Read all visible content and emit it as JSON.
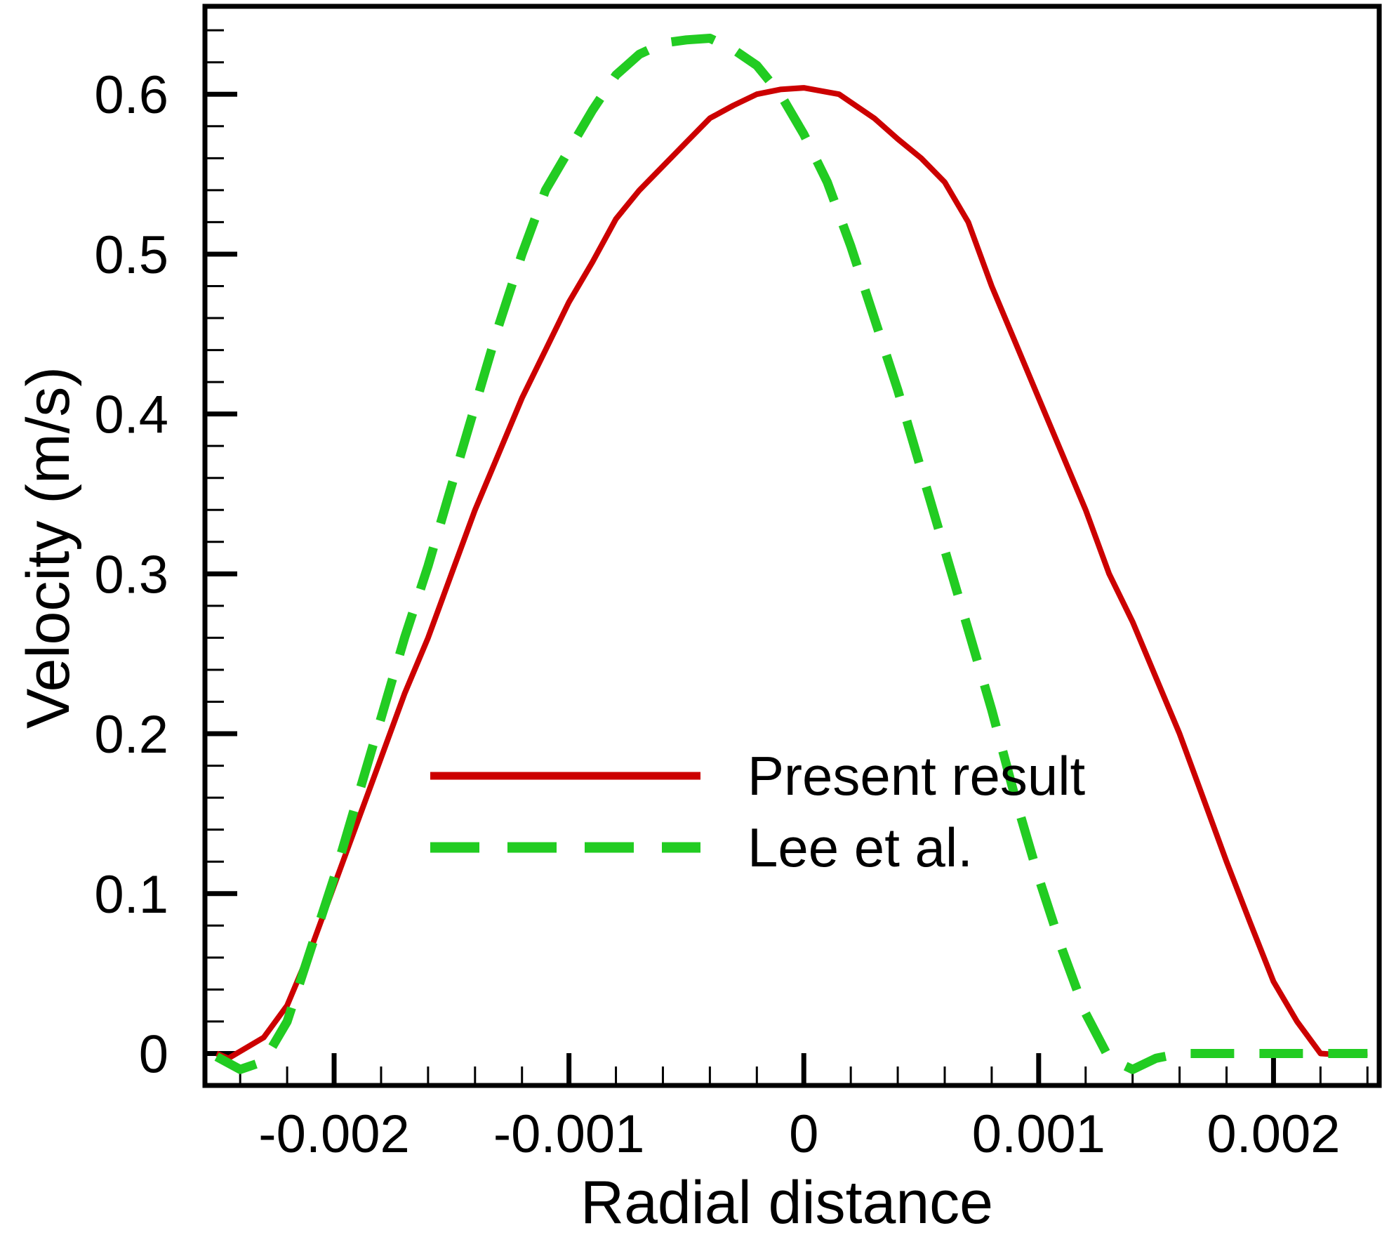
{
  "chart_data": {
    "type": "line",
    "title": "",
    "xlabel": "Radial distance",
    "ylabel": "Velocity (m/s)",
    "xlim": [
      -0.00255,
      0.00245
    ],
    "ylim": [
      -0.02,
      0.655
    ],
    "grid": false,
    "legend_position": "center-right",
    "x_ticks": [
      {
        "value": -0.002,
        "label": "-0.002"
      },
      {
        "value": -0.001,
        "label": "-0.001"
      },
      {
        "value": 0,
        "label": "0"
      },
      {
        "value": 0.001,
        "label": "0.001"
      },
      {
        "value": 0.002,
        "label": "0.002"
      }
    ],
    "y_ticks": [
      {
        "value": 0,
        "label": "0"
      },
      {
        "value": 0.1,
        "label": "0.1"
      },
      {
        "value": 0.2,
        "label": "0.2"
      },
      {
        "value": 0.3,
        "label": "0.3"
      },
      {
        "value": 0.4,
        "label": "0.4"
      },
      {
        "value": 0.5,
        "label": "0.5"
      },
      {
        "value": 0.6,
        "label": "0.6"
      }
    ],
    "series": [
      {
        "name": "Present result",
        "color": "#cc0000",
        "style": "solid",
        "x": [
          -0.0025,
          -0.00245,
          -0.0023,
          -0.0022,
          -0.0021,
          -0.002,
          -0.0019,
          -0.0018,
          -0.0017,
          -0.0016,
          -0.0015,
          -0.0014,
          -0.0013,
          -0.0012,
          -0.0011,
          -0.001,
          -0.0009,
          -0.0008,
          -0.0007,
          -0.0006,
          -0.0005,
          -0.0004,
          -0.0003,
          -0.0002,
          -0.0001,
          0,
          0.00015,
          0.0003,
          0.0004,
          0.0005,
          0.0006,
          0.0007,
          0.0008,
          0.0009,
          0.001,
          0.0011,
          0.0012,
          0.0013,
          0.0014,
          0.0015,
          0.0016,
          0.0017,
          0.0018,
          0.0019,
          0.002,
          0.0021,
          0.0022,
          0.0023,
          0.0024
        ],
        "values": [
          0.0,
          -0.003,
          0.01,
          0.03,
          0.065,
          0.105,
          0.145,
          0.185,
          0.225,
          0.26,
          0.3,
          0.34,
          0.375,
          0.41,
          0.44,
          0.47,
          0.495,
          0.522,
          0.54,
          0.555,
          0.57,
          0.585,
          0.593,
          0.6,
          0.603,
          0.604,
          0.6,
          0.585,
          0.572,
          0.56,
          0.545,
          0.52,
          0.48,
          0.445,
          0.41,
          0.375,
          0.34,
          0.3,
          0.27,
          0.235,
          0.2,
          0.16,
          0.12,
          0.082,
          0.045,
          0.02,
          0.0,
          -0.001,
          0.0
        ]
      },
      {
        "name": "Lee et al.",
        "color": "#22cc22",
        "style": "dashed",
        "x": [
          -0.0025,
          -0.0024,
          -0.0023,
          -0.0022,
          -0.0021,
          -0.002,
          -0.0019,
          -0.0018,
          -0.0017,
          -0.0016,
          -0.0015,
          -0.0014,
          -0.0013,
          -0.0012,
          -0.0011,
          -0.001,
          -0.0009,
          -0.0008,
          -0.0007,
          -0.0006,
          -0.0005,
          -0.0004,
          -0.0003,
          -0.0002,
          -0.0001,
          0,
          0.0001,
          0.0002,
          0.0003,
          0.0004,
          0.0005,
          0.0006,
          0.0007,
          0.0008,
          0.0009,
          0.001,
          0.0011,
          0.0012,
          0.0013,
          0.0014,
          0.0015,
          0.0016,
          0.0017,
          0.0018,
          0.0019,
          0.002,
          0.0021,
          0.0022,
          0.0023,
          0.0024
        ],
        "values": [
          -0.002,
          -0.01,
          -0.005,
          0.02,
          0.065,
          0.11,
          0.16,
          0.21,
          0.26,
          0.305,
          0.355,
          0.405,
          0.455,
          0.5,
          0.54,
          0.565,
          0.59,
          0.612,
          0.625,
          0.632,
          0.634,
          0.635,
          0.628,
          0.618,
          0.6,
          0.575,
          0.545,
          0.505,
          0.46,
          0.415,
          0.365,
          0.315,
          0.265,
          0.215,
          0.16,
          0.11,
          0.065,
          0.025,
          -0.003,
          -0.01,
          -0.003,
          0.0,
          0.0,
          0.0,
          0.0,
          0.0,
          0.0,
          0.0,
          0.0,
          0.0
        ]
      }
    ]
  }
}
